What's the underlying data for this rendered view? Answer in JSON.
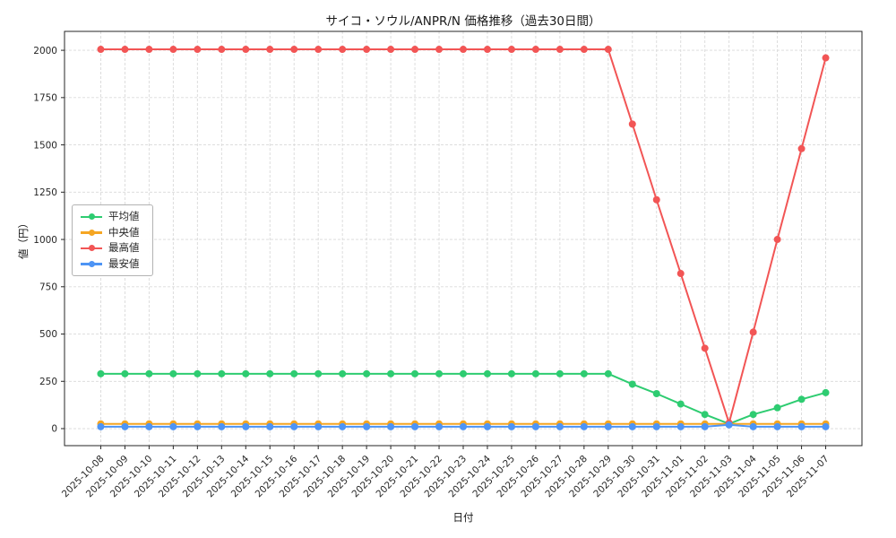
{
  "chart_data": {
    "type": "line",
    "title": "サイコ・ソウル/ANPR/N 価格推移（過去30日間）",
    "xlabel": "日付",
    "ylabel": "値（円）",
    "x": [
      "2025-10-08",
      "2025-10-09",
      "2025-10-10",
      "2025-10-11",
      "2025-10-12",
      "2025-10-13",
      "2025-10-14",
      "2025-10-15",
      "2025-10-16",
      "2025-10-17",
      "2025-10-18",
      "2025-10-19",
      "2025-10-20",
      "2025-10-21",
      "2025-10-22",
      "2025-10-23",
      "2025-10-24",
      "2025-10-25",
      "2025-10-26",
      "2025-10-27",
      "2025-10-28",
      "2025-10-29",
      "2025-10-30",
      "2025-10-31",
      "2025-11-01",
      "2025-11-02",
      "2025-11-03",
      "2025-11-04",
      "2025-11-05",
      "2025-11-06",
      "2025-11-07"
    ],
    "series": [
      {
        "name": "平均値",
        "color": "#2ecc71",
        "values": [
          290,
          290,
          290,
          290,
          290,
          290,
          290,
          290,
          290,
          290,
          290,
          290,
          290,
          290,
          290,
          290,
          290,
          290,
          290,
          290,
          290,
          290,
          235,
          185,
          130,
          75,
          25,
          75,
          110,
          155,
          190
        ]
      },
      {
        "name": "中央値",
        "color": "#f5a623",
        "values": [
          25,
          25,
          25,
          25,
          25,
          25,
          25,
          25,
          25,
          25,
          25,
          25,
          25,
          25,
          25,
          25,
          25,
          25,
          25,
          25,
          25,
          25,
          25,
          25,
          25,
          25,
          25,
          25,
          25,
          25,
          25
        ]
      },
      {
        "name": "最高値",
        "color": "#f25555",
        "values": [
          2005,
          2005,
          2005,
          2005,
          2005,
          2005,
          2005,
          2005,
          2005,
          2005,
          2005,
          2005,
          2005,
          2005,
          2005,
          2005,
          2005,
          2005,
          2005,
          2005,
          2005,
          2005,
          1610,
          1210,
          820,
          425,
          30,
          510,
          1000,
          1480,
          1960
        ]
      },
      {
        "name": "最安値",
        "color": "#4d94f5",
        "values": [
          10,
          10,
          10,
          10,
          10,
          10,
          10,
          10,
          10,
          10,
          10,
          10,
          10,
          10,
          10,
          10,
          10,
          10,
          10,
          10,
          10,
          10,
          10,
          10,
          10,
          10,
          20,
          10,
          10,
          10,
          10
        ]
      }
    ],
    "yticks": [
      0,
      250,
      500,
      750,
      1000,
      1250,
      1500,
      1750,
      2000
    ],
    "ylim": [
      -90,
      2100
    ],
    "x_index_lim": [
      -1.5,
      31.5
    ],
    "grid": true,
    "legend_position": "center left"
  }
}
